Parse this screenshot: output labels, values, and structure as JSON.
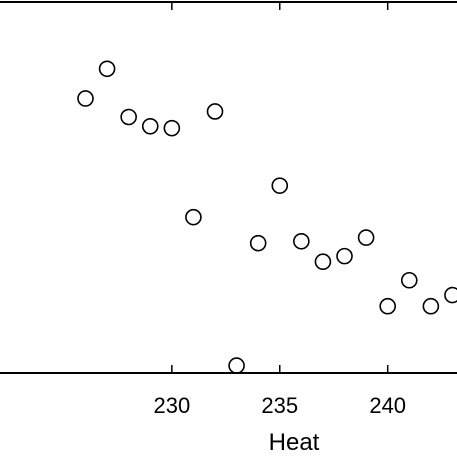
{
  "chart_data": {
    "type": "scatter",
    "title": "",
    "xlabel": "Heat",
    "ylabel": "",
    "xlim": [
      221.9,
      243.35
    ],
    "ylim": [
      0,
      100
    ],
    "x_ticks": [
      230,
      235,
      240
    ],
    "x_tick_labels": [
      "230",
      "235",
      "240"
    ],
    "grid": false,
    "marker": "open-circle",
    "series": [
      {
        "points": [
          {
            "x": 226,
            "y": 74
          },
          {
            "x": 227,
            "y": 82
          },
          {
            "x": 228,
            "y": 69
          },
          {
            "x": 229,
            "y": 66.5
          },
          {
            "x": 230,
            "y": 66
          },
          {
            "x": 231,
            "y": 42
          },
          {
            "x": 232,
            "y": 70.5
          },
          {
            "x": 233,
            "y": 2
          },
          {
            "x": 234,
            "y": 35
          },
          {
            "x": 235,
            "y": 50.5
          },
          {
            "x": 236,
            "y": 35.5
          },
          {
            "x": 237,
            "y": 30
          },
          {
            "x": 238,
            "y": 31.5
          },
          {
            "x": 239,
            "y": 36.5
          },
          {
            "x": 240,
            "y": 18
          },
          {
            "x": 241,
            "y": 25
          },
          {
            "x": 242,
            "y": 18
          },
          {
            "x": 243,
            "y": 21
          }
        ]
      }
    ]
  }
}
